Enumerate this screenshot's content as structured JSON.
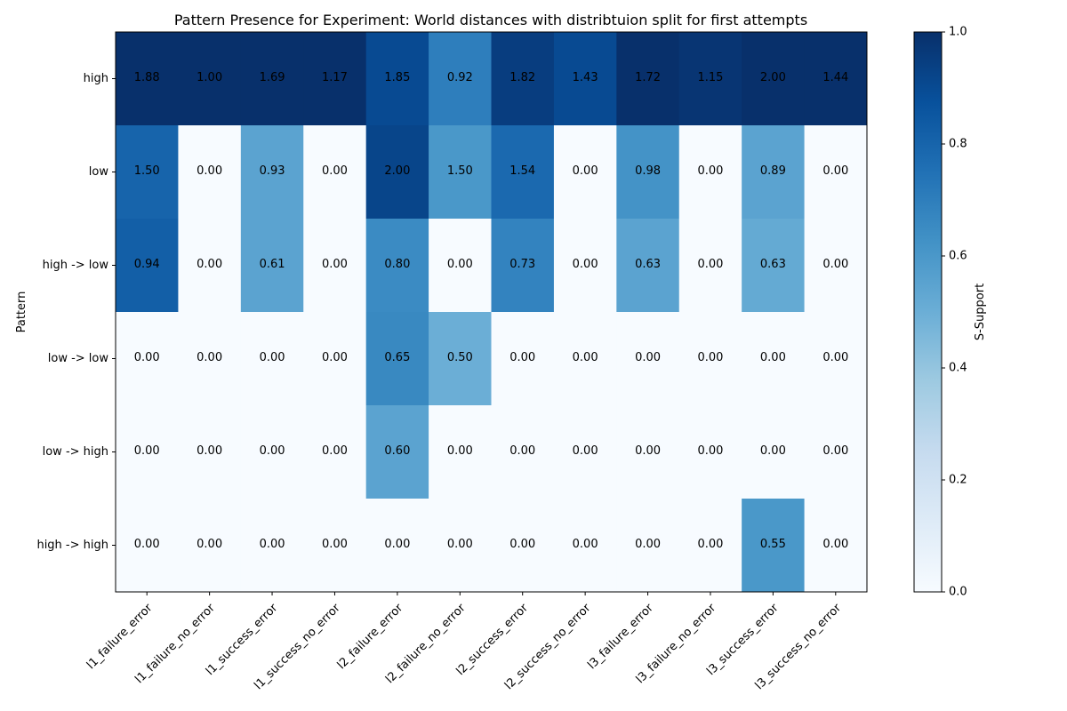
{
  "chart_data": {
    "type": "heatmap",
    "title": "Pattern Presence for Experiment: World distances with distribtuion split for first attempts",
    "xlabel": "",
    "ylabel": "Pattern",
    "colorbar_label": "S-Support",
    "colormap": "Blues",
    "vmin": 0.0,
    "vmax": 1.0,
    "colorbar_ticks": [
      "0.0",
      "0.2",
      "0.4",
      "0.6",
      "0.8",
      "1.0"
    ],
    "x_categories": [
      "l1_failure_error",
      "l1_failure_no_error",
      "l1_success_error",
      "l1_success_no_error",
      "l2_failure_error",
      "l2_failure_no_error",
      "l2_success_error",
      "l2_success_no_error",
      "l3_failure_error",
      "l3_failure_no_error",
      "l3_success_error",
      "l3_success_no_error"
    ],
    "y_categories": [
      "high",
      "low",
      "high -> low",
      "low -> low",
      "low -> high",
      "high -> high"
    ],
    "support": [
      [
        1.0,
        1.0,
        1.0,
        1.0,
        0.9,
        0.7,
        0.95,
        0.9,
        1.0,
        0.98,
        1.0,
        1.0
      ],
      [
        0.8,
        0.0,
        0.55,
        0.0,
        0.92,
        0.6,
        0.78,
        0.0,
        0.62,
        0.0,
        0.55,
        0.0
      ],
      [
        0.82,
        0.0,
        0.55,
        0.0,
        0.65,
        0.0,
        0.68,
        0.0,
        0.55,
        0.0,
        0.52,
        0.0
      ],
      [
        0.0,
        0.0,
        0.0,
        0.0,
        0.66,
        0.5,
        0.0,
        0.0,
        0.0,
        0.0,
        0.0,
        0.0
      ],
      [
        0.0,
        0.0,
        0.0,
        0.0,
        0.55,
        0.0,
        0.0,
        0.0,
        0.0,
        0.0,
        0.0,
        0.0
      ],
      [
        0.0,
        0.0,
        0.0,
        0.0,
        0.0,
        0.0,
        0.0,
        0.0,
        0.0,
        0.0,
        0.6,
        0.0
      ]
    ],
    "annotations": [
      [
        "1.88",
        "1.00",
        "1.69",
        "1.17",
        "1.85",
        "0.92",
        "1.82",
        "1.43",
        "1.72",
        "1.15",
        "2.00",
        "1.44"
      ],
      [
        "1.50",
        "0.00",
        "0.93",
        "0.00",
        "2.00",
        "1.50",
        "1.54",
        "0.00",
        "0.98",
        "0.00",
        "0.89",
        "0.00"
      ],
      [
        "0.94",
        "0.00",
        "0.61",
        "0.00",
        "0.80",
        "0.00",
        "0.73",
        "0.00",
        "0.63",
        "0.00",
        "0.63",
        "0.00"
      ],
      [
        "0.00",
        "0.00",
        "0.00",
        "0.00",
        "0.65",
        "0.50",
        "0.00",
        "0.00",
        "0.00",
        "0.00",
        "0.00",
        "0.00"
      ],
      [
        "0.00",
        "0.00",
        "0.00",
        "0.00",
        "0.60",
        "0.00",
        "0.00",
        "0.00",
        "0.00",
        "0.00",
        "0.00",
        "0.00"
      ],
      [
        "0.00",
        "0.00",
        "0.00",
        "0.00",
        "0.00",
        "0.00",
        "0.00",
        "0.00",
        "0.00",
        "0.00",
        "0.55",
        "0.00"
      ]
    ]
  }
}
